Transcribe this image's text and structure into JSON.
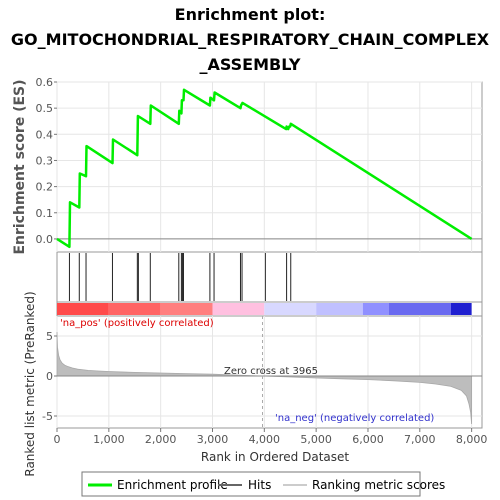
{
  "chart_data": {
    "type": "line",
    "title_line1": "Enrichment plot:",
    "title_line2": "GO_MITOCHONDRIAL_RESPIRATORY_CHAIN_COMPLEX",
    "title_line3": "_ASSEMBLY",
    "ylabel_top": "Enrichment score (ES)",
    "ylabel_bottom": "Ranked list metric (PreRanked)",
    "xlabel": "Rank in Ordered Dataset",
    "xlim": [
      0,
      8200
    ],
    "ylim_top": [
      -0.05,
      0.6
    ],
    "ylim_bottom": [
      -6.5,
      7.5
    ],
    "x_ticks": [
      0,
      1000,
      2000,
      3000,
      4000,
      5000,
      6000,
      7000,
      8000
    ],
    "x_tick_labels": [
      "0",
      "1,000",
      "2,000",
      "3,000",
      "4,000",
      "5,000",
      "6,000",
      "7,000",
      "8,000"
    ],
    "y_ticks_top": [
      0.0,
      0.1,
      0.2,
      0.3,
      0.4,
      0.5,
      0.6
    ],
    "y_tick_labels_top": [
      "0.0",
      "0.1",
      "0.2",
      "0.3",
      "0.4",
      "0.5",
      "0.6"
    ],
    "y_ticks_bottom": [
      -5,
      0,
      5
    ],
    "y_tick_labels_bottom": [
      "-5",
      "0",
      "5"
    ],
    "series": [
      {
        "name": "Enrichment profile",
        "color": "#00ee00",
        "x": [
          0,
          240,
          250,
          430,
          440,
          560,
          570,
          1070,
          1080,
          1550,
          1560,
          1800,
          1810,
          2350,
          2360,
          2400,
          2410,
          2440,
          2450,
          2950,
          2960,
          3030,
          3040,
          3540,
          3550,
          3580,
          4420,
          4430,
          4460,
          4480,
          4500,
          4510,
          8000
        ],
        "y": [
          0.0,
          -0.03,
          0.14,
          0.12,
          0.25,
          0.24,
          0.355,
          0.29,
          0.38,
          0.32,
          0.47,
          0.44,
          0.51,
          0.44,
          0.49,
          0.48,
          0.53,
          0.53,
          0.57,
          0.51,
          0.54,
          0.53,
          0.56,
          0.5,
          0.51,
          0.52,
          0.42,
          0.43,
          0.42,
          0.43,
          0.43,
          0.44,
          0.0
        ]
      }
    ],
    "hits": [
      240,
      430,
      560,
      1070,
      1550,
      1570,
      1800,
      2350,
      2400,
      2420,
      2440,
      2950,
      3030,
      3540,
      3570,
      4020,
      4430,
      4510
    ],
    "ranking_metric_points": [
      [
        0,
        5.5
      ],
      [
        10,
        3.6
      ],
      [
        30,
        2.6
      ],
      [
        60,
        2.0
      ],
      [
        100,
        1.6
      ],
      [
        150,
        1.35
      ],
      [
        200,
        1.2
      ],
      [
        300,
        1.0
      ],
      [
        400,
        0.85
      ],
      [
        600,
        0.7
      ],
      [
        800,
        0.62
      ],
      [
        1000,
        0.56
      ],
      [
        1500,
        0.45
      ],
      [
        2000,
        0.38
      ],
      [
        2500,
        0.3
      ],
      [
        3000,
        0.22
      ],
      [
        3500,
        0.1
      ],
      [
        3965,
        0.0
      ],
      [
        4500,
        -0.12
      ],
      [
        5000,
        -0.25
      ],
      [
        5500,
        -0.35
      ],
      [
        6000,
        -0.45
      ],
      [
        6500,
        -0.6
      ],
      [
        7000,
        -0.8
      ],
      [
        7300,
        -1.0
      ],
      [
        7600,
        -1.3
      ],
      [
        7800,
        -1.8
      ],
      [
        7900,
        -2.5
      ],
      [
        7950,
        -3.5
      ],
      [
        7980,
        -4.5
      ],
      [
        8000,
        -6.0
      ]
    ],
    "zero_cross": 3965,
    "zero_cross_label": "Zero cross at 3965",
    "pos_label": "'na_pos' (positively correlated)",
    "neg_label": "'na_neg' (negatively correlated)",
    "heat_segments": [
      {
        "from": 0,
        "to": 1000,
        "color": "#ff4a4a"
      },
      {
        "from": 1000,
        "to": 2000,
        "color": "#ff6464"
      },
      {
        "from": 2000,
        "to": 3000,
        "color": "#ff7f7f"
      },
      {
        "from": 3000,
        "to": 4000,
        "color": "#ffc0e0"
      },
      {
        "from": 4000,
        "to": 5000,
        "color": "#d8d8ff"
      },
      {
        "from": 5000,
        "to": 5900,
        "color": "#c0c0ff"
      },
      {
        "from": 5900,
        "to": 6400,
        "color": "#9090ff"
      },
      {
        "from": 6400,
        "to": 7600,
        "color": "#6a6af0"
      },
      {
        "from": 7600,
        "to": 8000,
        "color": "#2020d0"
      }
    ],
    "legend": {
      "enrichment": "Enrichment profile",
      "hits": "Hits",
      "ranking": "Ranking metric scores",
      "enrichment_color": "#00ee00",
      "hits_color": "#666666",
      "ranking_color": "#cccccc"
    }
  }
}
